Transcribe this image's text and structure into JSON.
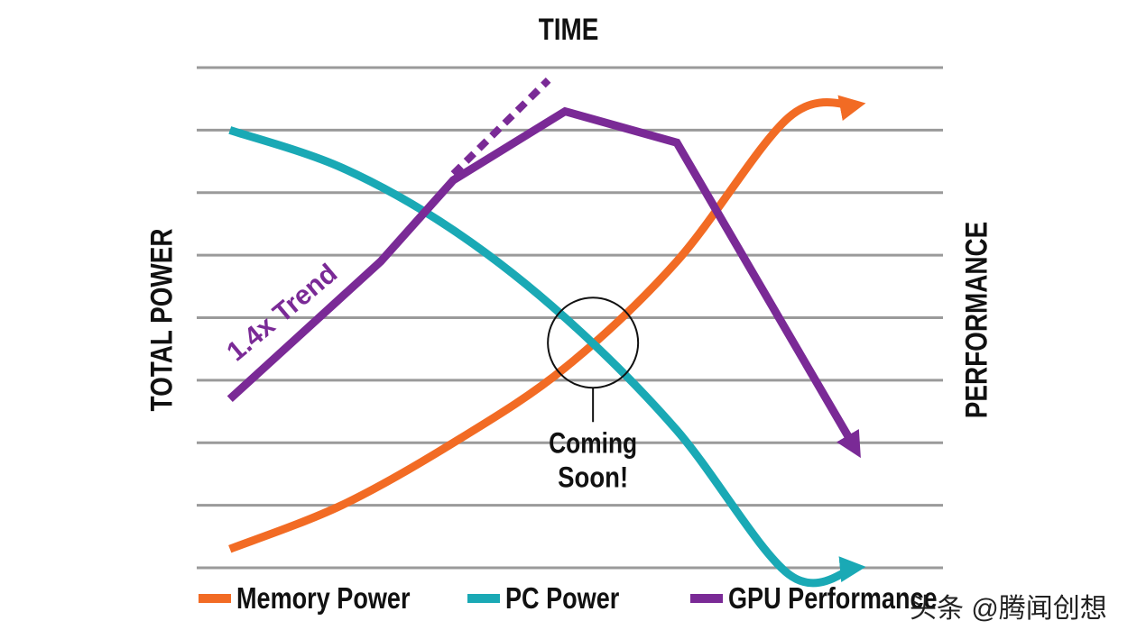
{
  "chart_data": {
    "type": "line",
    "title": "TIME",
    "xlabel": "",
    "ylabel_left": "TOTAL POWER",
    "ylabel_right": "PERFORMANCE",
    "grid": true,
    "gridlines": 9,
    "x": [
      0,
      1,
      2,
      3,
      4,
      5,
      6
    ],
    "xlim": [
      -0.2,
      6.1
    ],
    "ylim": [
      0,
      8
    ],
    "series": [
      {
        "name": "Memory Power",
        "color": "#F26B24",
        "x": [
          0,
          1.0,
          2.0,
          3.0,
          4.0,
          5.0,
          5.6
        ],
        "values": [
          0.3,
          1.0,
          2.0,
          3.2,
          4.9,
          7.2,
          7.4
        ],
        "arrow_end": true
      },
      {
        "name": "PC Power",
        "color": "#1AA9B5",
        "x": [
          0,
          1.0,
          2.0,
          3.0,
          4.0,
          5.0,
          5.6
        ],
        "values": [
          7.0,
          6.4,
          5.4,
          4.0,
          2.2,
          -0.1,
          0.0
        ],
        "arrow_end": true
      },
      {
        "name": "GPU Performance",
        "color": "#7A2A96",
        "x": [
          0,
          1.35,
          2.0,
          3.0,
          4.0,
          5.6
        ],
        "values": [
          2.7,
          4.9,
          6.2,
          7.3,
          6.8,
          1.9
        ],
        "arrow_end": true
      }
    ],
    "trend": {
      "label": "1.4x Trend",
      "color": "#7A2A96",
      "style": "dashed",
      "x": [
        2.0,
        2.85
      ],
      "values": [
        6.3,
        7.8
      ]
    },
    "annotations": [
      {
        "text_line1": "Coming",
        "text_line2": "Soon!",
        "x": 3.25,
        "y": 3.6
      }
    ],
    "legend": {
      "placement": "bottom",
      "entries": [
        "Memory Power",
        "PC Power",
        "GPU Performance"
      ]
    }
  },
  "watermark": "头条 @腾闻创想"
}
